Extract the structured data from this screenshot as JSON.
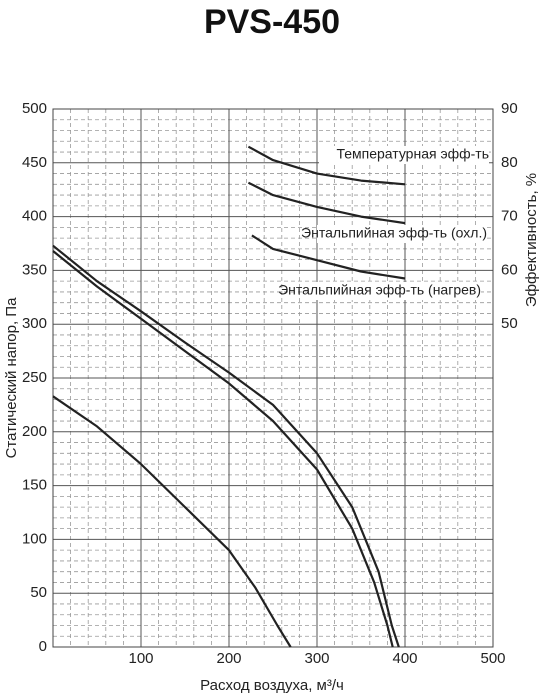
{
  "chart_data": {
    "type": "line",
    "title": "PVS-450",
    "x_label": "Расход воздуха, м³/ч",
    "y_label": "Статический напор, Па",
    "y2_label": "Эффективность, %",
    "xlim": [
      0,
      500
    ],
    "xticks": [
      100,
      200,
      300,
      400,
      500
    ],
    "ylim": [
      0,
      500
    ],
    "yticks": [
      0,
      50,
      100,
      150,
      200,
      250,
      300,
      350,
      400,
      450,
      500
    ],
    "y2lim": [
      -10,
      90
    ],
    "y2ticks": [
      50,
      60,
      70,
      80,
      90
    ],
    "grid": true,
    "color": "#222222",
    "series": [
      {
        "x": [
          0,
          50,
          100,
          150,
          200,
          250,
          300,
          340,
          370,
          385,
          393
        ],
        "values": [
          373,
          340,
          312,
          283,
          255,
          225,
          180,
          130,
          70,
          20,
          0
        ]
      },
      {
        "x": [
          0,
          50,
          100,
          150,
          200,
          250,
          300,
          340,
          365,
          380,
          386
        ],
        "values": [
          368,
          335,
          305,
          275,
          245,
          210,
          165,
          110,
          60,
          20,
          0
        ]
      },
      {
        "x": [
          0,
          50,
          100,
          150,
          200,
          230,
          255,
          270
        ],
        "values": [
          233,
          205,
          170,
          130,
          90,
          55,
          20,
          0
        ]
      },
      {
        "name": "Температурная эфф-ть",
        "axis": "y2",
        "x": [
          222,
          250,
          300,
          350,
          400
        ],
        "values": [
          83,
          80.5,
          78,
          76.7,
          76
        ]
      },
      {
        "name": "Энтальпийная эфф-ть (охл.)",
        "axis": "y2",
        "x": [
          222,
          250,
          300,
          350,
          400
        ],
        "values": [
          76.3,
          74,
          71.8,
          70,
          68.8
        ]
      },
      {
        "name": "Энтальпийная эфф-ть (нагрев)",
        "axis": "y2",
        "x": [
          226,
          250,
          300,
          350,
          400
        ],
        "values": [
          66.5,
          64,
          61.9,
          59.8,
          58.5
        ]
      }
    ]
  }
}
